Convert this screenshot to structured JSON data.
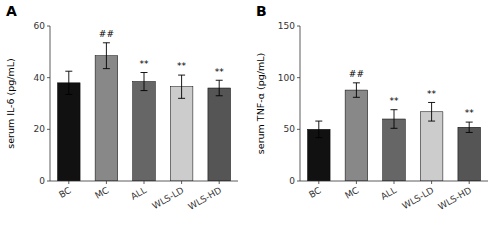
{
  "chart_data": [
    {
      "type": "bar",
      "title": "A",
      "categories": [
        "BC",
        "MC",
        "ALL",
        "WLS-LD",
        "WLS-HD"
      ],
      "values": [
        38.0,
        48.5,
        38.5,
        36.5,
        36.0
      ],
      "errors": [
        4.5,
        5.0,
        3.5,
        4.5,
        3.0
      ],
      "colors": [
        "#111111",
        "#888888",
        "#666666",
        "#cccccc",
        "#555555"
      ],
      "annotations": [
        null,
        "##",
        "**",
        "**",
        "**"
      ],
      "y_label": "serum IL-6 (pg/mL)",
      "ylim": [
        0,
        60
      ],
      "yticks": [
        0,
        20,
        40,
        60
      ],
      "grid": false
    },
    {
      "type": "bar",
      "title": "B",
      "categories": [
        "BC",
        "MC",
        "ALL",
        "WLS-LD",
        "WLS-HD"
      ],
      "values": [
        50.0,
        88.0,
        60.0,
        67.0,
        52.0
      ],
      "errors": [
        8.0,
        7.0,
        9.0,
        9.0,
        5.0
      ],
      "colors": [
        "#111111",
        "#888888",
        "#666666",
        "#cccccc",
        "#555555"
      ],
      "annotations": [
        null,
        "##",
        "**",
        "**",
        "**"
      ],
      "y_label": "serum TNF-α (pg/mL)",
      "ylim": [
        0,
        150
      ],
      "yticks": [
        0,
        50,
        100,
        150
      ],
      "grid": false
    }
  ]
}
